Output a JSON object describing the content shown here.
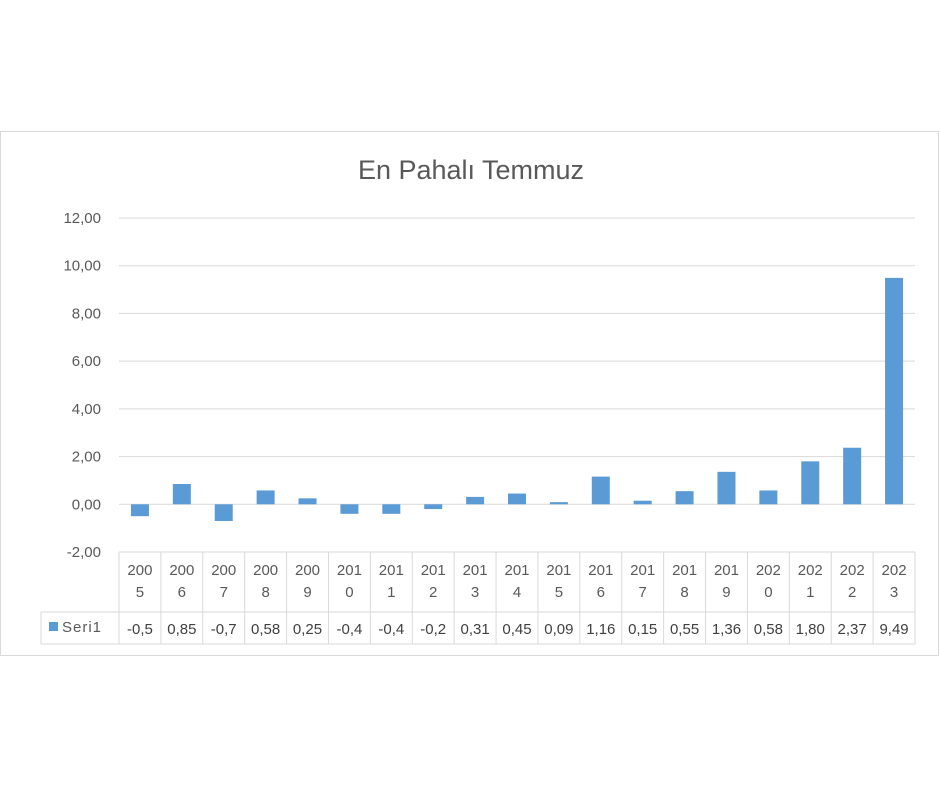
{
  "chart_data": {
    "type": "bar",
    "title": "En Pahalı Temmuz",
    "categories": [
      "2005",
      "2006",
      "2007",
      "2008",
      "2009",
      "2010",
      "2011",
      "2012",
      "2013",
      "2014",
      "2015",
      "2016",
      "2017",
      "2018",
      "2019",
      "2020",
      "2021",
      "2022",
      "2023"
    ],
    "series": [
      {
        "name": "Seri1",
        "values": [
          -0.5,
          0.85,
          -0.7,
          0.58,
          0.25,
          -0.4,
          -0.4,
          -0.2,
          0.31,
          0.45,
          0.09,
          1.16,
          0.15,
          0.55,
          1.36,
          0.58,
          1.8,
          2.37,
          9.49
        ],
        "labels": [
          "-0,5",
          "0,85",
          "-0,7",
          "0,58",
          "0,25",
          "-0,4",
          "-0,4",
          "-0,2",
          "0,31",
          "0,45",
          "0,09",
          "1,16",
          "0,15",
          "0,55",
          "1,36",
          "0,58",
          "1,80",
          "2,37",
          "9,49"
        ],
        "color": "#5b9bd5"
      }
    ],
    "ylim": [
      -2,
      12
    ],
    "yticks": [
      "-2,00",
      "0,00",
      "2,00",
      "4,00",
      "6,00",
      "8,00",
      "10,00",
      "12,00"
    ],
    "ytick_values": [
      -2,
      0,
      2,
      4,
      6,
      8,
      10,
      12
    ],
    "grid": true,
    "legend": "data-table",
    "data_table": true
  }
}
